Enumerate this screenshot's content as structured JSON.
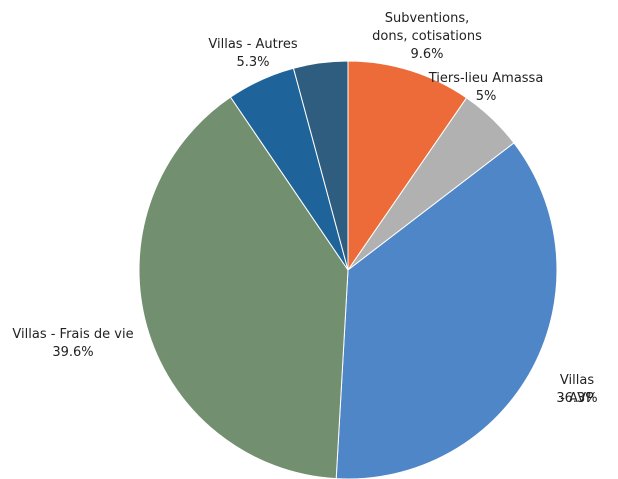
{
  "chart_data": {
    "type": "pie",
    "categories": [
      "Subventions,\ndons, cotisations",
      "Tiers-lieu Amassa",
      "Villas - AVP",
      "Villas - Frais de vie",
      "Villas - Autres",
      null
    ],
    "values": [
      9.6,
      5,
      36.3,
      39.6,
      5.3,
      4.2
    ],
    "value_labels": [
      "9.6%",
      "5%",
      "36.3%",
      "39.6%",
      "5.3%",
      null
    ],
    "colors": [
      "#ec6b38",
      "#b1b1b1",
      "#4f86c7",
      "#728f70",
      "#1e6399",
      "#2f5d80"
    ]
  }
}
